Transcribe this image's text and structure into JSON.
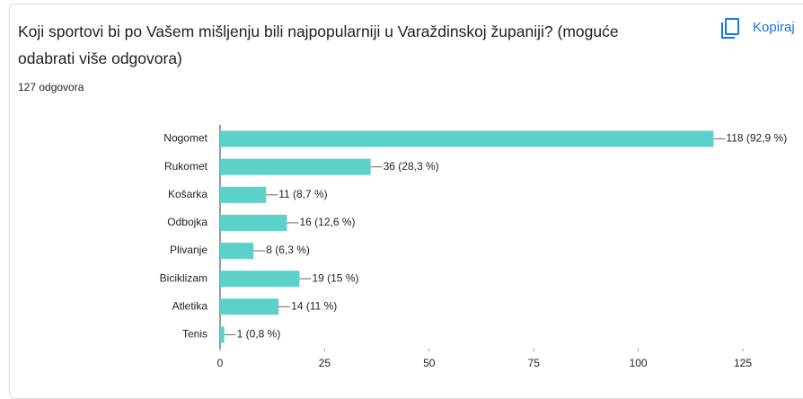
{
  "chart_data": {
    "type": "bar",
    "orientation": "horizontal",
    "title": "Koji sportovi bi po Vašem mišljenju bili najpopularniji u Varaždinskoj županiji? (moguće odabrati više odgovora)",
    "subtitle": "127 odgovora",
    "copy_button": "Kopiraj",
    "categories": [
      "Nogomet",
      "Rukomet",
      "Košarka",
      "Odbojka",
      "Plivanje",
      "Biciklizam",
      "Atletika",
      "Tenis"
    ],
    "values": [
      118,
      36,
      11,
      16,
      8,
      19,
      14,
      1
    ],
    "value_labels": [
      "118 (92,9 %)",
      "36 (28,3 %)",
      "11 (8,7 %)",
      "16 (12,6 %)",
      "8 (6,3 %)",
      "19 (15 %)",
      "14 (11 %)",
      "1 (0,8 %)"
    ],
    "color": "#5bd1c9",
    "xlim": [
      0,
      125
    ],
    "xticks": [
      0,
      25,
      50,
      75,
      100,
      125
    ],
    "grid": false
  }
}
